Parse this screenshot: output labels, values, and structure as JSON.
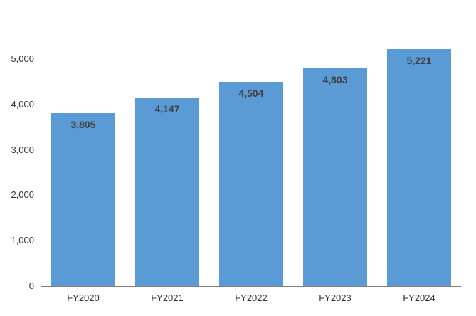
{
  "chart_data": {
    "type": "bar",
    "title": "",
    "xlabel": "",
    "ylabel": "",
    "categories": [
      "FY2020",
      "FY2021",
      "FY2022",
      "FY2023",
      "FY2024"
    ],
    "values": [
      3805,
      4147,
      4504,
      4803,
      5221
    ],
    "value_labels": [
      "3,805",
      "4,147",
      "4,504",
      "4,803",
      "5,221"
    ],
    "ylim": [
      0,
      5000
    ],
    "ytick_values": [
      0,
      1000,
      2000,
      3000,
      4000,
      5000
    ],
    "ytick_labels": [
      "0",
      "1,000",
      "2,000",
      "3,000",
      "4,000",
      "5,000"
    ],
    "grid": false,
    "legend": false,
    "colors": {
      "bar_fill": "#5B9BD5",
      "value_label": "#404040",
      "axis_label": "#333333",
      "axis_line": "#7F7F7F",
      "background": "#FFFFFF"
    }
  }
}
